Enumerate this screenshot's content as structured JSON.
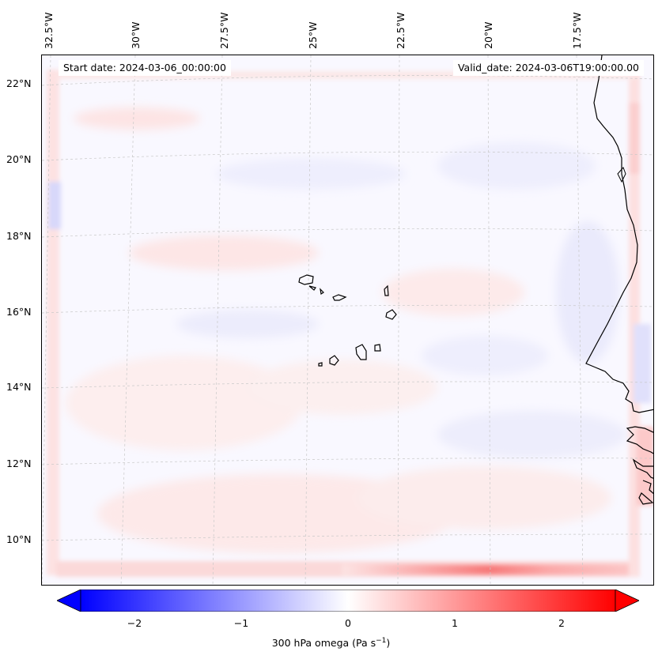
{
  "header": {
    "start_date": "Start date: 2024-03-06_00:00:00",
    "valid_date": "Valid_date: 2024-03-06T19:00:00.00"
  },
  "axes": {
    "longitude_labels": [
      "32.5°W",
      "30°W",
      "27.5°W",
      "25°W",
      "22.5°W",
      "20°W",
      "17.5°W"
    ],
    "latitude_labels": [
      "22°N",
      "20°N",
      "18°N",
      "16°N",
      "14°N",
      "12°N",
      "10°N"
    ]
  },
  "colorbar": {
    "label_main": "300 hPa omega (Pa s",
    "label_exp": "−1",
    "label_end": ")",
    "ticks": [
      "−2",
      "−1",
      "0",
      "1",
      "2"
    ],
    "vmin": -2.6,
    "vmax": 2.6,
    "colormap": "bwr",
    "low_color": "#0000ff",
    "mid_color": "#ffffff",
    "high_color": "#ff0000"
  },
  "map": {
    "variable": "300 hPa omega",
    "features": [
      "coastline-west-africa",
      "cape-verde-islands",
      "gridlines"
    ]
  }
}
